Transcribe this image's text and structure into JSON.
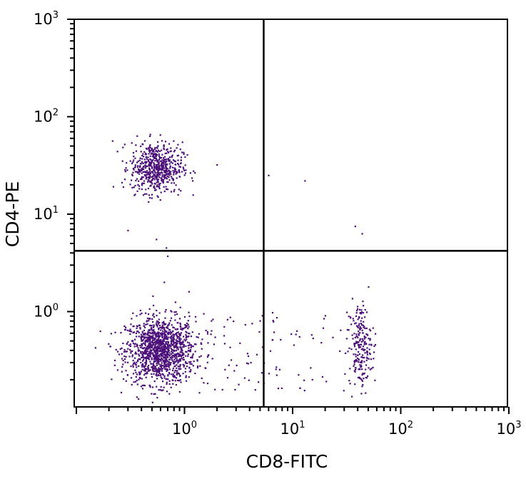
{
  "chart_data": {
    "type": "scatter",
    "title": "",
    "xlabel": "CD8-FITC",
    "ylabel": "CD4-PE",
    "xscale": "log",
    "yscale": "log",
    "xlim": [
      0.1,
      1000
    ],
    "ylim": [
      0.1,
      1000
    ],
    "x_tick_labels": [
      {
        "value": 1,
        "base": "10",
        "exp": "0"
      },
      {
        "value": 10,
        "base": "10",
        "exp": "1"
      },
      {
        "value": 100,
        "base": "10",
        "exp": "2"
      },
      {
        "value": 1000,
        "base": "10",
        "exp": "3"
      }
    ],
    "y_tick_labels": [
      {
        "value": 1,
        "base": "10",
        "exp": "0"
      },
      {
        "value": 10,
        "base": "10",
        "exp": "1"
      },
      {
        "value": 100,
        "base": "10",
        "exp": "2"
      },
      {
        "value": 1000,
        "base": "10",
        "exp": "3"
      }
    ],
    "quadrant_gates": {
      "x": 5.4,
      "y": 4.2
    },
    "point_color": "#4b0f7a",
    "populations": [
      {
        "center": [
          0.6,
          0.4
        ],
        "spread": [
          0.16,
          0.17
        ],
        "count": 1300
      },
      {
        "center": [
          0.55,
          30
        ],
        "spread": [
          0.12,
          0.13
        ],
        "count": 600
      },
      {
        "center": [
          42,
          0.45
        ],
        "spread": [
          0.05,
          0.22
        ],
        "count": 200
      },
      {
        "x_range": [
          1.5,
          60
        ],
        "y_range": [
          0.15,
          1.0
        ],
        "count": 110
      }
    ],
    "outliers": [
      {
        "x": 6.0,
        "y": 25
      },
      {
        "x": 13,
        "y": 22
      },
      {
        "x": 38,
        "y": 7.5
      },
      {
        "x": 44,
        "y": 6.3
      },
      {
        "x": 0.68,
        "y": 4.5
      },
      {
        "x": 0.7,
        "y": 3.7
      },
      {
        "x": 0.65,
        "y": 2.0
      },
      {
        "x": 1.1,
        "y": 1.6
      },
      {
        "x": 0.3,
        "y": 6.8
      },
      {
        "x": 0.55,
        "y": 5.5
      },
      {
        "x": 2.0,
        "y": 32
      }
    ]
  }
}
